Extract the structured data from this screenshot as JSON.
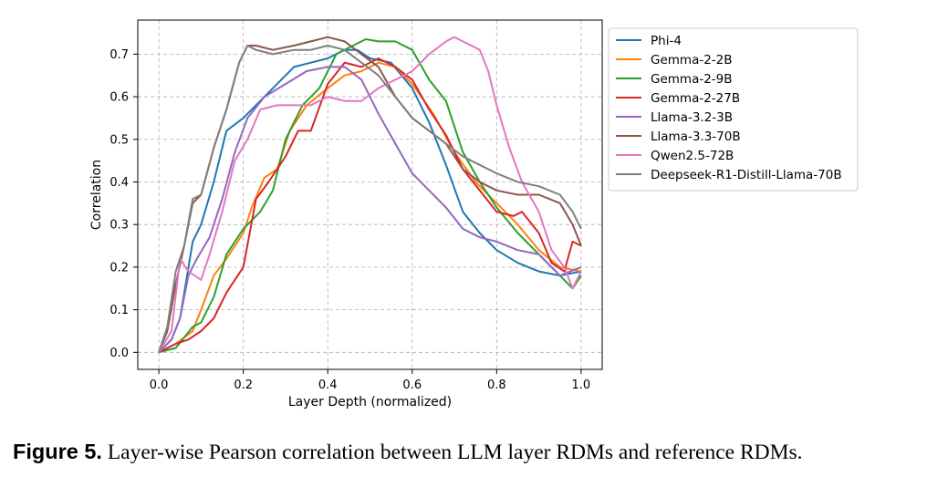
{
  "caption": {
    "label": "Figure 5.",
    "text": "Layer-wise Pearson correlation between LLM layer RDMs and reference RDMs."
  },
  "chart_data": {
    "type": "line",
    "xlabel": "Layer Depth (normalized)",
    "ylabel": "Correlation",
    "xlim": [
      -0.05,
      1.05
    ],
    "ylim": [
      -0.04,
      0.78
    ],
    "xticks": [
      0.0,
      0.2,
      0.4,
      0.6,
      0.8,
      1.0
    ],
    "yticks": [
      0.0,
      0.1,
      0.2,
      0.3,
      0.4,
      0.5,
      0.6,
      0.7
    ],
    "xtick_labels": [
      "0.0",
      "0.2",
      "0.4",
      "0.6",
      "0.8",
      "1.0"
    ],
    "ytick_labels": [
      "0.0",
      "0.1",
      "0.2",
      "0.3",
      "0.4",
      "0.5",
      "0.6",
      "0.7"
    ],
    "grid": true,
    "legend_position": "outside-right",
    "series": [
      {
        "name": "Phi-4",
        "color": "#1f77b4",
        "points": [
          [
            0,
            0
          ],
          [
            0.03,
            0.03
          ],
          [
            0.05,
            0.08
          ],
          [
            0.08,
            0.26
          ],
          [
            0.1,
            0.3
          ],
          [
            0.13,
            0.4
          ],
          [
            0.16,
            0.52
          ],
          [
            0.2,
            0.55
          ],
          [
            0.25,
            0.6
          ],
          [
            0.32,
            0.67
          ],
          [
            0.36,
            0.68
          ],
          [
            0.4,
            0.69
          ],
          [
            0.44,
            0.71
          ],
          [
            0.47,
            0.71
          ],
          [
            0.5,
            0.69
          ],
          [
            0.55,
            0.68
          ],
          [
            0.6,
            0.62
          ],
          [
            0.64,
            0.54
          ],
          [
            0.68,
            0.44
          ],
          [
            0.72,
            0.33
          ],
          [
            0.76,
            0.28
          ],
          [
            0.8,
            0.24
          ],
          [
            0.85,
            0.21
          ],
          [
            0.9,
            0.19
          ],
          [
            0.95,
            0.18
          ],
          [
            1.0,
            0.19
          ]
        ]
      },
      {
        "name": "Gemma-2-2B",
        "color": "#ff7f0e",
        "points": [
          [
            0,
            0
          ],
          [
            0.04,
            0.02
          ],
          [
            0.08,
            0.05
          ],
          [
            0.1,
            0.1
          ],
          [
            0.13,
            0.18
          ],
          [
            0.16,
            0.22
          ],
          [
            0.2,
            0.28
          ],
          [
            0.22,
            0.34
          ],
          [
            0.25,
            0.41
          ],
          [
            0.28,
            0.43
          ],
          [
            0.31,
            0.52
          ],
          [
            0.35,
            0.58
          ],
          [
            0.4,
            0.62
          ],
          [
            0.44,
            0.65
          ],
          [
            0.48,
            0.66
          ],
          [
            0.52,
            0.68
          ],
          [
            0.56,
            0.67
          ],
          [
            0.6,
            0.63
          ],
          [
            0.65,
            0.56
          ],
          [
            0.7,
            0.47
          ],
          [
            0.75,
            0.4
          ],
          [
            0.8,
            0.35
          ],
          [
            0.85,
            0.3
          ],
          [
            0.9,
            0.24
          ],
          [
            0.95,
            0.2
          ],
          [
            1.0,
            0.19
          ]
        ]
      },
      {
        "name": "Gemma-2-9B",
        "color": "#2ca02c",
        "points": [
          [
            0,
            0
          ],
          [
            0.04,
            0.01
          ],
          [
            0.08,
            0.06
          ],
          [
            0.1,
            0.07
          ],
          [
            0.13,
            0.13
          ],
          [
            0.16,
            0.23
          ],
          [
            0.2,
            0.29
          ],
          [
            0.24,
            0.33
          ],
          [
            0.27,
            0.38
          ],
          [
            0.3,
            0.5
          ],
          [
            0.34,
            0.58
          ],
          [
            0.38,
            0.62
          ],
          [
            0.42,
            0.7
          ],
          [
            0.46,
            0.72
          ],
          [
            0.49,
            0.735
          ],
          [
            0.52,
            0.73
          ],
          [
            0.56,
            0.73
          ],
          [
            0.6,
            0.71
          ],
          [
            0.64,
            0.64
          ],
          [
            0.68,
            0.59
          ],
          [
            0.72,
            0.47
          ],
          [
            0.76,
            0.4
          ],
          [
            0.8,
            0.34
          ],
          [
            0.85,
            0.28
          ],
          [
            0.9,
            0.23
          ],
          [
            0.93,
            0.2
          ],
          [
            0.98,
            0.15
          ],
          [
            1.0,
            0.18
          ]
        ]
      },
      {
        "name": "Gemma-2-27B",
        "color": "#d62728",
        "points": [
          [
            0,
            0
          ],
          [
            0.04,
            0.02
          ],
          [
            0.07,
            0.03
          ],
          [
            0.1,
            0.05
          ],
          [
            0.13,
            0.08
          ],
          [
            0.16,
            0.14
          ],
          [
            0.2,
            0.2
          ],
          [
            0.23,
            0.36
          ],
          [
            0.26,
            0.4
          ],
          [
            0.3,
            0.46
          ],
          [
            0.33,
            0.52
          ],
          [
            0.36,
            0.52
          ],
          [
            0.4,
            0.63
          ],
          [
            0.44,
            0.68
          ],
          [
            0.48,
            0.67
          ],
          [
            0.52,
            0.69
          ],
          [
            0.56,
            0.67
          ],
          [
            0.6,
            0.64
          ],
          [
            0.64,
            0.57
          ],
          [
            0.68,
            0.51
          ],
          [
            0.72,
            0.43
          ],
          [
            0.76,
            0.38
          ],
          [
            0.8,
            0.33
          ],
          [
            0.84,
            0.32
          ],
          [
            0.86,
            0.33
          ],
          [
            0.9,
            0.28
          ],
          [
            0.93,
            0.21
          ],
          [
            0.96,
            0.19
          ],
          [
            0.98,
            0.26
          ],
          [
            1.0,
            0.25
          ]
        ]
      },
      {
        "name": "Llama-3.2-3B",
        "color": "#9467bd",
        "points": [
          [
            0,
            0
          ],
          [
            0.03,
            0.03
          ],
          [
            0.05,
            0.08
          ],
          [
            0.07,
            0.18
          ],
          [
            0.09,
            0.22
          ],
          [
            0.12,
            0.27
          ],
          [
            0.15,
            0.36
          ],
          [
            0.18,
            0.47
          ],
          [
            0.21,
            0.55
          ],
          [
            0.25,
            0.6
          ],
          [
            0.3,
            0.63
          ],
          [
            0.35,
            0.66
          ],
          [
            0.4,
            0.67
          ],
          [
            0.44,
            0.67
          ],
          [
            0.48,
            0.64
          ],
          [
            0.52,
            0.56
          ],
          [
            0.56,
            0.49
          ],
          [
            0.6,
            0.42
          ],
          [
            0.64,
            0.38
          ],
          [
            0.68,
            0.34
          ],
          [
            0.72,
            0.29
          ],
          [
            0.76,
            0.27
          ],
          [
            0.8,
            0.26
          ],
          [
            0.85,
            0.24
          ],
          [
            0.9,
            0.23
          ],
          [
            0.95,
            0.18
          ],
          [
            1.0,
            0.2
          ]
        ]
      },
      {
        "name": "Llama-3.3-70B",
        "color": "#8c564b",
        "points": [
          [
            0,
            0
          ],
          [
            0.02,
            0.05
          ],
          [
            0.04,
            0.16
          ],
          [
            0.06,
            0.25
          ],
          [
            0.08,
            0.35
          ],
          [
            0.1,
            0.37
          ],
          [
            0.13,
            0.48
          ],
          [
            0.16,
            0.57
          ],
          [
            0.19,
            0.68
          ],
          [
            0.21,
            0.72
          ],
          [
            0.23,
            0.72
          ],
          [
            0.27,
            0.71
          ],
          [
            0.32,
            0.72
          ],
          [
            0.36,
            0.73
          ],
          [
            0.4,
            0.74
          ],
          [
            0.44,
            0.73
          ],
          [
            0.48,
            0.7
          ],
          [
            0.52,
            0.67
          ],
          [
            0.56,
            0.6
          ],
          [
            0.6,
            0.55
          ],
          [
            0.64,
            0.52
          ],
          [
            0.68,
            0.49
          ],
          [
            0.72,
            0.43
          ],
          [
            0.76,
            0.4
          ],
          [
            0.8,
            0.38
          ],
          [
            0.85,
            0.37
          ],
          [
            0.9,
            0.37
          ],
          [
            0.95,
            0.35
          ],
          [
            0.98,
            0.3
          ],
          [
            1.0,
            0.25
          ]
        ]
      },
      {
        "name": "Qwen2.5-72B",
        "color": "#e377c2",
        "points": [
          [
            0,
            0
          ],
          [
            0.03,
            0.05
          ],
          [
            0.05,
            0.22
          ],
          [
            0.07,
            0.19
          ],
          [
            0.1,
            0.17
          ],
          [
            0.12,
            0.23
          ],
          [
            0.15,
            0.33
          ],
          [
            0.18,
            0.45
          ],
          [
            0.21,
            0.5
          ],
          [
            0.24,
            0.57
          ],
          [
            0.28,
            0.58
          ],
          [
            0.32,
            0.58
          ],
          [
            0.36,
            0.58
          ],
          [
            0.4,
            0.6
          ],
          [
            0.44,
            0.59
          ],
          [
            0.48,
            0.59
          ],
          [
            0.52,
            0.62
          ],
          [
            0.56,
            0.64
          ],
          [
            0.6,
            0.66
          ],
          [
            0.64,
            0.7
          ],
          [
            0.68,
            0.73
          ],
          [
            0.7,
            0.74
          ],
          [
            0.74,
            0.72
          ],
          [
            0.76,
            0.71
          ],
          [
            0.78,
            0.66
          ],
          [
            0.8,
            0.58
          ],
          [
            0.83,
            0.48
          ],
          [
            0.86,
            0.4
          ],
          [
            0.9,
            0.33
          ],
          [
            0.93,
            0.24
          ],
          [
            0.96,
            0.2
          ],
          [
            0.98,
            0.15
          ],
          [
            1.0,
            0.19
          ]
        ]
      },
      {
        "name": "Deepseek-R1-Distill-Llama-70B",
        "color": "#7f7f7f",
        "points": [
          [
            0,
            0
          ],
          [
            0.02,
            0.06
          ],
          [
            0.04,
            0.19
          ],
          [
            0.06,
            0.25
          ],
          [
            0.08,
            0.36
          ],
          [
            0.1,
            0.37
          ],
          [
            0.13,
            0.48
          ],
          [
            0.16,
            0.57
          ],
          [
            0.19,
            0.68
          ],
          [
            0.21,
            0.72
          ],
          [
            0.23,
            0.71
          ],
          [
            0.27,
            0.7
          ],
          [
            0.32,
            0.71
          ],
          [
            0.36,
            0.71
          ],
          [
            0.4,
            0.72
          ],
          [
            0.44,
            0.71
          ],
          [
            0.48,
            0.68
          ],
          [
            0.52,
            0.65
          ],
          [
            0.56,
            0.6
          ],
          [
            0.6,
            0.55
          ],
          [
            0.64,
            0.52
          ],
          [
            0.68,
            0.49
          ],
          [
            0.72,
            0.46
          ],
          [
            0.76,
            0.44
          ],
          [
            0.8,
            0.42
          ],
          [
            0.85,
            0.4
          ],
          [
            0.9,
            0.39
          ],
          [
            0.95,
            0.37
          ],
          [
            0.98,
            0.33
          ],
          [
            1.0,
            0.29
          ]
        ]
      }
    ]
  }
}
